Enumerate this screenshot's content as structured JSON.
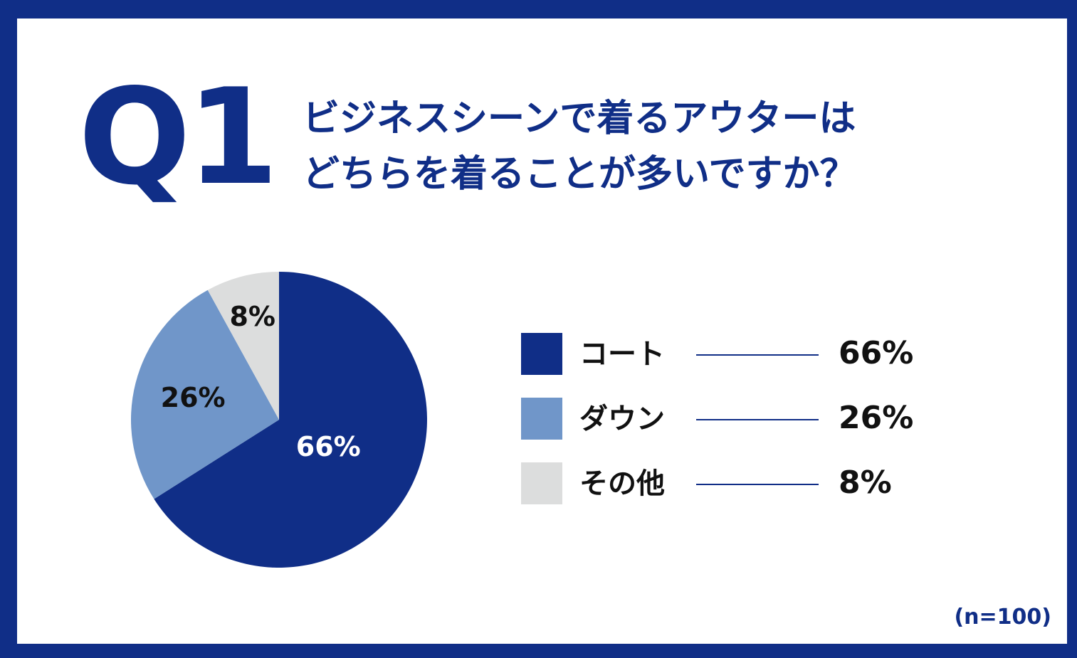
{
  "header": {
    "q_number": "Q1",
    "question_lines": [
      "ビジネスシーンで着るアウターは",
      "どちらを着ることが多いですか？"
    ]
  },
  "colors": {
    "frame": "#102e87",
    "coat": "#102e87",
    "down": "#7096c9",
    "other": "#dcdddd",
    "text_dark": "#111111",
    "text_light": "#ffffff"
  },
  "chart_data": {
    "type": "pie",
    "start_angle": "12 o'clock, clockwise",
    "slices": [
      {
        "name": "コート",
        "value": 66,
        "label": "66%",
        "legend_value": "66%",
        "color": "#102e87",
        "label_color": "#ffffff"
      },
      {
        "name": "ダウン",
        "value": 26,
        "label": "26%",
        "legend_value": "26%",
        "color": "#7096c9",
        "label_color": "#111111"
      },
      {
        "name": "その他",
        "value": 8,
        "label": "8%",
        "legend_value": "8%",
        "color": "#dcdddd",
        "label_color": "#111111"
      }
    ],
    "legend_placement": "right"
  },
  "footnote": "(n=100)"
}
